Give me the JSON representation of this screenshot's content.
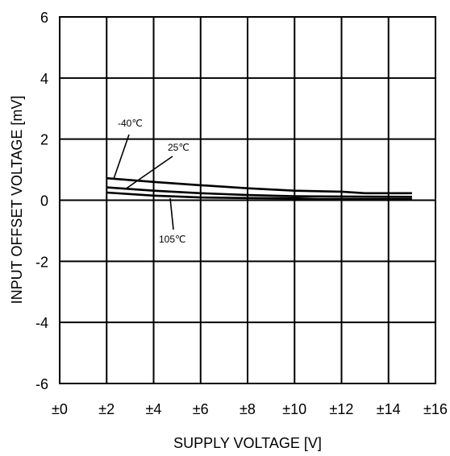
{
  "chart_data": {
    "type": "line",
    "title": "",
    "xlabel": "SUPPLY VOLTAGE [V]",
    "ylabel": "INPUT OFFSET VOLTAGE [mV]",
    "xlim": [
      0,
      16
    ],
    "ylim": [
      -6,
      6
    ],
    "grid": true,
    "x_ticks": [
      0,
      2,
      4,
      6,
      8,
      10,
      12,
      14,
      16
    ],
    "x_tick_labels": [
      "±0",
      "±2",
      "±4",
      "±6",
      "±8",
      "±10",
      "±12",
      "±14",
      "±16"
    ],
    "y_ticks": [
      -6,
      -4,
      -2,
      0,
      2,
      4,
      6
    ],
    "y_tick_labels": [
      "-6",
      "-4",
      "-2",
      "0",
      "2",
      "4",
      "6"
    ],
    "series": [
      {
        "name": "-40℃",
        "x": [
          2,
          4,
          6,
          8,
          10,
          12,
          13,
          15
        ],
        "y": [
          0.72,
          0.6,
          0.49,
          0.39,
          0.31,
          0.28,
          0.23,
          0.23
        ]
      },
      {
        "name": "25℃",
        "x": [
          2,
          4,
          6,
          8,
          10,
          12,
          15
        ],
        "y": [
          0.42,
          0.31,
          0.23,
          0.17,
          0.13,
          0.12,
          0.11
        ]
      },
      {
        "name": "105℃",
        "x": [
          2,
          4,
          6,
          8,
          10,
          11,
          15
        ],
        "y": [
          0.25,
          0.15,
          0.09,
          0.07,
          0.06,
          0.04,
          0.04
        ]
      }
    ],
    "annotations": [
      {
        "text": "-40℃",
        "series": 0
      },
      {
        "text": "25℃",
        "series": 1
      },
      {
        "text": "105℃",
        "series": 2
      }
    ]
  }
}
